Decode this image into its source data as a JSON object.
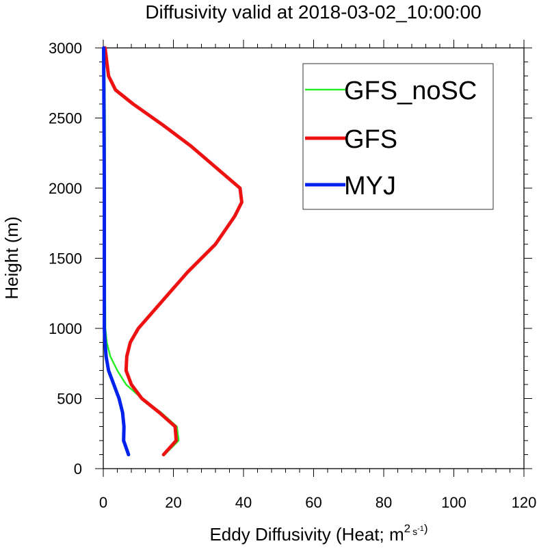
{
  "chart_data": {
    "type": "line",
    "title": "Diffusivity valid at 2018-03-02_10:00:00",
    "xlabel_main": "Eddy Diffusivity (Heat; m",
    "xlabel_sup1": "2",
    "xlabel_unit": "s",
    "xlabel_sup2": "-1",
    "xlabel_close": ")",
    "ylabel": "Height (m)",
    "xlim": [
      0,
      120
    ],
    "ylim": [
      0,
      3000
    ],
    "xticks": [
      0,
      20,
      40,
      60,
      80,
      100,
      120
    ],
    "yticks": [
      0,
      500,
      1000,
      1500,
      2000,
      2500,
      3000
    ],
    "xtick_labels": [
      "0",
      "20",
      "40",
      "60",
      "80",
      "100",
      "120"
    ],
    "ytick_labels": [
      "0",
      "500",
      "1000",
      "1500",
      "2000",
      "2500",
      "3000"
    ],
    "grid": false,
    "legend_position": "top-right",
    "series": [
      {
        "name": "GFS_noSC",
        "color": "#22ee22",
        "points": [
          [
            17.5,
            100
          ],
          [
            21.5,
            200
          ],
          [
            21,
            300
          ],
          [
            16.5,
            400
          ],
          [
            11,
            500
          ],
          [
            6.5,
            600
          ],
          [
            4,
            700
          ],
          [
            2,
            800
          ],
          [
            1,
            900
          ],
          [
            0.6,
            1000
          ],
          [
            0.5,
            1500
          ],
          [
            0.5,
            2000
          ],
          [
            0.5,
            2500
          ],
          [
            0.3,
            3000
          ]
        ]
      },
      {
        "name": "GFS",
        "color": "#ee1111",
        "points": [
          [
            17.2,
            100
          ],
          [
            20.8,
            200
          ],
          [
            20.5,
            300
          ],
          [
            16,
            400
          ],
          [
            11,
            500
          ],
          [
            8,
            600
          ],
          [
            6.5,
            700
          ],
          [
            6.7,
            800
          ],
          [
            7.7,
            900
          ],
          [
            10,
            1000
          ],
          [
            17,
            1200
          ],
          [
            24,
            1400
          ],
          [
            32,
            1600
          ],
          [
            37.5,
            1800
          ],
          [
            39.5,
            1900
          ],
          [
            39,
            2000
          ],
          [
            32,
            2150
          ],
          [
            25,
            2300
          ],
          [
            17,
            2450
          ],
          [
            8.5,
            2600
          ],
          [
            3.5,
            2700
          ],
          [
            1.5,
            2800
          ],
          [
            0.5,
            3000
          ]
        ]
      },
      {
        "name": "MYJ",
        "color": "#0022ee",
        "points": [
          [
            7.2,
            100
          ],
          [
            5.8,
            200
          ],
          [
            5.9,
            300
          ],
          [
            5.5,
            400
          ],
          [
            4.5,
            500
          ],
          [
            3,
            600
          ],
          [
            1.5,
            700
          ],
          [
            0.8,
            800
          ],
          [
            0.5,
            900
          ],
          [
            0.3,
            1000
          ],
          [
            0.3,
            1500
          ],
          [
            0.3,
            2000
          ],
          [
            0.2,
            2500
          ],
          [
            0.1,
            3000
          ]
        ]
      }
    ]
  }
}
